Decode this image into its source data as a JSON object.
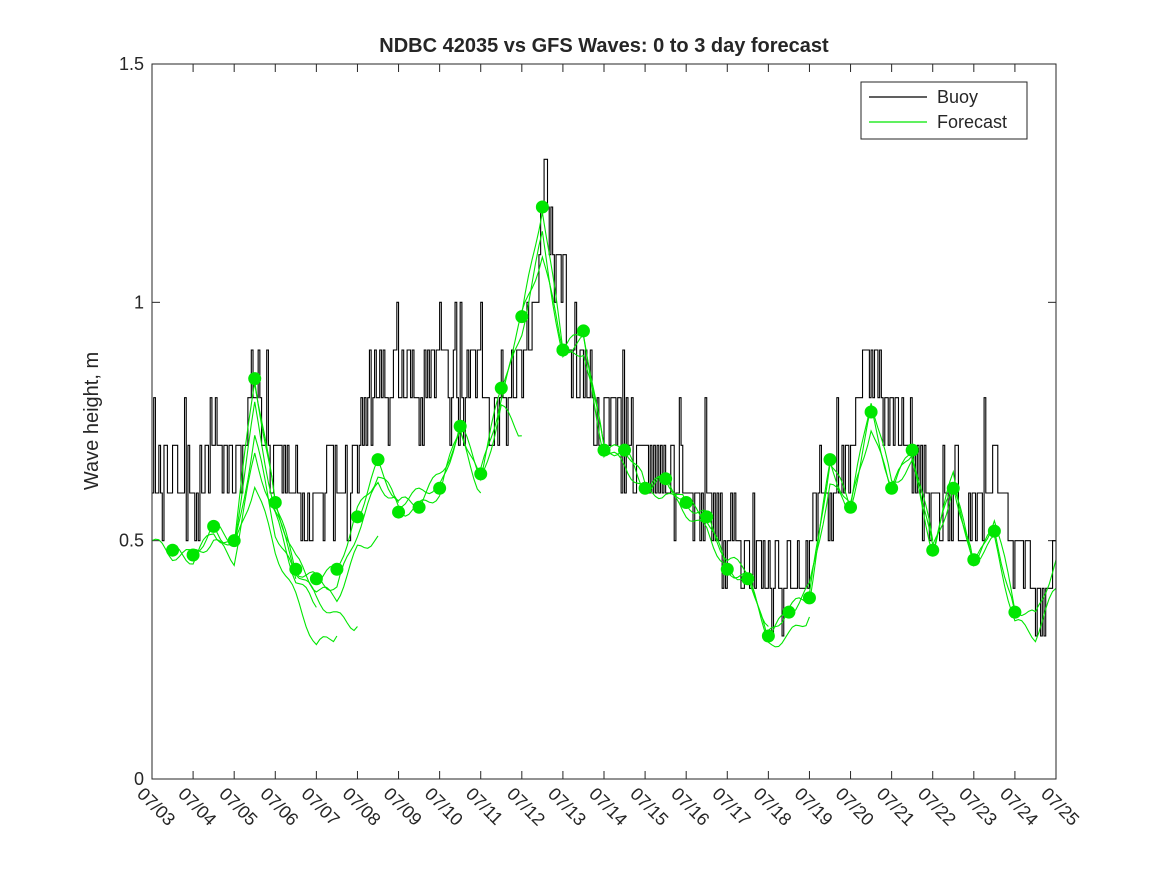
{
  "chart_data": {
    "type": "line",
    "title": "NDBC 42035 vs GFS Waves: 0 to 3 day forecast",
    "ylabel": "Wave height, m",
    "xlabel": "",
    "ylim": [
      0,
      1.5
    ],
    "xlim": [
      0,
      22
    ],
    "yticks": [
      {
        "value": 0,
        "label": "0"
      },
      {
        "value": 0.5,
        "label": "0.5"
      },
      {
        "value": 1,
        "label": "1"
      },
      {
        "value": 1.5,
        "label": "1.5"
      }
    ],
    "xticks": [
      "07/03",
      "07/04",
      "07/05",
      "07/06",
      "07/07",
      "07/08",
      "07/09",
      "07/10",
      "07/11",
      "07/12",
      "07/13",
      "07/14",
      "07/15",
      "07/16",
      "07/17",
      "07/18",
      "07/19",
      "07/20",
      "07/21",
      "07/22",
      "07/23",
      "07/24",
      "07/25"
    ],
    "legend": {
      "placement": "top-right",
      "entries": [
        {
          "label": "Buoy",
          "color": "#000000"
        },
        {
          "label": "Forecast",
          "color": "#00e600"
        }
      ]
    },
    "colors": {
      "buoy": "#000000",
      "forecast": "#00e600"
    },
    "buoy_daily_profile": [
      [
        0.0,
        0.62
      ],
      [
        0.25,
        0.6
      ],
      [
        0.5,
        0.65
      ],
      [
        0.75,
        0.6
      ],
      [
        1.0,
        0.58
      ],
      [
        1.25,
        0.65
      ],
      [
        1.5,
        0.75
      ],
      [
        1.75,
        0.68
      ],
      [
        2.0,
        0.62
      ],
      [
        2.25,
        0.72
      ],
      [
        2.5,
        0.86
      ],
      [
        2.75,
        0.74
      ],
      [
        3.0,
        0.68
      ],
      [
        3.25,
        0.63
      ],
      [
        3.5,
        0.6
      ],
      [
        3.75,
        0.58
      ],
      [
        4.0,
        0.6
      ],
      [
        4.25,
        0.64
      ],
      [
        4.5,
        0.62
      ],
      [
        4.75,
        0.6
      ],
      [
        5.0,
        0.68
      ],
      [
        5.25,
        0.78
      ],
      [
        5.5,
        0.85
      ],
      [
        5.75,
        0.8
      ],
      [
        6.0,
        0.82
      ],
      [
        6.25,
        0.88
      ],
      [
        6.5,
        0.78
      ],
      [
        6.75,
        0.84
      ],
      [
        7.0,
        0.9
      ],
      [
        7.25,
        0.82
      ],
      [
        7.5,
        0.78
      ],
      [
        7.75,
        0.88
      ],
      [
        8.0,
        0.84
      ],
      [
        8.25,
        0.78
      ],
      [
        8.5,
        0.72
      ],
      [
        8.75,
        0.8
      ],
      [
        9.0,
        0.88
      ],
      [
        9.25,
        0.98
      ],
      [
        9.5,
        1.25
      ],
      [
        9.75,
        1.1
      ],
      [
        10.0,
        0.98
      ],
      [
        10.25,
        0.9
      ],
      [
        10.5,
        0.82
      ],
      [
        10.75,
        0.76
      ],
      [
        11.0,
        0.72
      ],
      [
        11.25,
        0.74
      ],
      [
        11.5,
        0.7
      ],
      [
        11.75,
        0.68
      ],
      [
        12.0,
        0.66
      ],
      [
        12.25,
        0.64
      ],
      [
        12.5,
        0.62
      ],
      [
        12.75,
        0.6
      ],
      [
        13.0,
        0.6
      ],
      [
        13.25,
        0.58
      ],
      [
        13.5,
        0.56
      ],
      [
        13.75,
        0.52
      ],
      [
        14.0,
        0.48
      ],
      [
        14.25,
        0.45
      ],
      [
        14.5,
        0.45
      ],
      [
        14.75,
        0.4
      ],
      [
        15.0,
        0.42
      ],
      [
        15.25,
        0.4
      ],
      [
        15.5,
        0.44
      ],
      [
        15.75,
        0.42
      ],
      [
        16.0,
        0.48
      ],
      [
        16.25,
        0.55
      ],
      [
        16.5,
        0.62
      ],
      [
        16.75,
        0.6
      ],
      [
        17.0,
        0.7
      ],
      [
        17.25,
        0.84
      ],
      [
        17.5,
        0.88
      ],
      [
        17.75,
        0.82
      ],
      [
        18.0,
        0.78
      ],
      [
        18.25,
        0.72
      ],
      [
        18.5,
        0.68
      ],
      [
        18.75,
        0.62
      ],
      [
        19.0,
        0.56
      ],
      [
        19.25,
        0.58
      ],
      [
        19.5,
        0.6
      ],
      [
        19.75,
        0.58
      ],
      [
        20.0,
        0.55
      ],
      [
        20.25,
        0.58
      ],
      [
        20.5,
        0.62
      ],
      [
        20.75,
        0.55
      ],
      [
        21.0,
        0.48
      ],
      [
        21.25,
        0.45
      ],
      [
        21.5,
        0.42
      ],
      [
        21.75,
        0.4
      ],
      [
        22.0,
        0.45
      ]
    ],
    "forecast_analysis_points": [
      [
        0.5,
        0.48
      ],
      [
        1.0,
        0.47
      ],
      [
        1.5,
        0.53
      ],
      [
        2.0,
        0.5
      ],
      [
        2.5,
        0.84
      ],
      [
        3.0,
        0.58
      ],
      [
        3.5,
        0.44
      ],
      [
        4.0,
        0.42
      ],
      [
        4.5,
        0.44
      ],
      [
        5.0,
        0.55
      ],
      [
        5.5,
        0.67
      ],
      [
        6.0,
        0.56
      ],
      [
        6.5,
        0.57
      ],
      [
        7.0,
        0.61
      ],
      [
        7.5,
        0.74
      ],
      [
        8.0,
        0.64
      ],
      [
        8.5,
        0.82
      ],
      [
        9.0,
        0.97
      ],
      [
        9.5,
        1.2
      ],
      [
        10.0,
        0.9
      ],
      [
        10.5,
        0.94
      ],
      [
        11.0,
        0.69
      ],
      [
        11.5,
        0.69
      ],
      [
        12.0,
        0.61
      ],
      [
        12.5,
        0.63
      ],
      [
        13.0,
        0.58
      ],
      [
        13.5,
        0.55
      ],
      [
        14.0,
        0.44
      ],
      [
        14.5,
        0.42
      ],
      [
        15.0,
        0.3
      ],
      [
        15.5,
        0.35
      ],
      [
        16.0,
        0.38
      ],
      [
        16.5,
        0.67
      ],
      [
        17.0,
        0.57
      ],
      [
        17.5,
        0.77
      ],
      [
        18.0,
        0.61
      ],
      [
        18.5,
        0.69
      ],
      [
        19.0,
        0.48
      ],
      [
        19.5,
        0.61
      ],
      [
        20.0,
        0.46
      ],
      [
        20.5,
        0.52
      ],
      [
        21.0,
        0.35
      ]
    ],
    "forecast_runs": [
      {
        "start": 0.0,
        "end": 3.0,
        "points": [
          [
            0.0,
            0.5
          ],
          [
            0.5,
            0.47
          ],
          [
            1.0,
            0.47
          ],
          [
            1.5,
            0.53
          ],
          [
            2.0,
            0.5
          ],
          [
            2.5,
            0.84
          ],
          [
            3.0,
            0.58
          ]
        ]
      },
      {
        "start": 0.5,
        "end": 3.5,
        "points": [
          [
            0.5,
            0.48
          ],
          [
            1.0,
            0.46
          ],
          [
            1.5,
            0.52
          ],
          [
            2.0,
            0.48
          ],
          [
            2.5,
            0.72
          ],
          [
            3.0,
            0.52
          ],
          [
            3.5,
            0.42
          ]
        ]
      },
      {
        "start": 1.0,
        "end": 4.0,
        "points": [
          [
            1.0,
            0.47
          ],
          [
            1.5,
            0.5
          ],
          [
            2.0,
            0.46
          ],
          [
            2.5,
            0.68
          ],
          [
            3.0,
            0.55
          ],
          [
            3.5,
            0.42
          ],
          [
            4.0,
            0.36
          ]
        ]
      },
      {
        "start": 1.5,
        "end": 4.5,
        "points": [
          [
            1.5,
            0.53
          ],
          [
            2.0,
            0.48
          ],
          [
            2.5,
            0.62
          ],
          [
            3.0,
            0.48
          ],
          [
            3.5,
            0.38
          ],
          [
            4.0,
            0.28
          ],
          [
            4.5,
            0.3
          ]
        ]
      },
      {
        "start": 2.0,
        "end": 5.0,
        "points": [
          [
            2.0,
            0.5
          ],
          [
            2.5,
            0.78
          ],
          [
            3.0,
            0.56
          ],
          [
            3.5,
            0.44
          ],
          [
            4.0,
            0.38
          ],
          [
            4.5,
            0.34
          ],
          [
            5.0,
            0.32
          ]
        ]
      },
      {
        "start": 2.5,
        "end": 5.5,
        "points": [
          [
            2.5,
            0.84
          ],
          [
            3.0,
            0.58
          ],
          [
            3.5,
            0.46
          ],
          [
            4.0,
            0.4
          ],
          [
            4.5,
            0.38
          ],
          [
            5.0,
            0.48
          ],
          [
            5.5,
            0.51
          ]
        ]
      },
      {
        "start": 3.0,
        "end": 6.0,
        "points": [
          [
            3.0,
            0.58
          ],
          [
            3.5,
            0.44
          ],
          [
            4.0,
            0.42
          ],
          [
            4.5,
            0.4
          ],
          [
            5.0,
            0.52
          ],
          [
            5.5,
            0.62
          ],
          [
            6.0,
            0.58
          ]
        ]
      },
      {
        "start": 4.0,
        "end": 7.0,
        "points": [
          [
            4.0,
            0.42
          ],
          [
            4.5,
            0.44
          ],
          [
            5.0,
            0.56
          ],
          [
            5.5,
            0.64
          ],
          [
            6.0,
            0.58
          ],
          [
            6.5,
            0.6
          ],
          [
            7.0,
            0.62
          ]
        ]
      },
      {
        "start": 5.0,
        "end": 8.0,
        "points": [
          [
            5.0,
            0.55
          ],
          [
            5.5,
            0.66
          ],
          [
            6.0,
            0.58
          ],
          [
            6.5,
            0.58
          ],
          [
            7.0,
            0.64
          ],
          [
            7.5,
            0.72
          ],
          [
            8.0,
            0.6
          ]
        ]
      },
      {
        "start": 6.0,
        "end": 9.0,
        "points": [
          [
            6.0,
            0.56
          ],
          [
            6.5,
            0.57
          ],
          [
            7.0,
            0.6
          ],
          [
            7.5,
            0.74
          ],
          [
            8.0,
            0.62
          ],
          [
            8.5,
            0.78
          ],
          [
            9.0,
            0.72
          ]
        ]
      },
      {
        "start": 7.0,
        "end": 10.0,
        "points": [
          [
            7.0,
            0.61
          ],
          [
            7.5,
            0.74
          ],
          [
            8.0,
            0.64
          ],
          [
            8.5,
            0.82
          ],
          [
            9.0,
            0.97
          ],
          [
            9.5,
            1.1
          ],
          [
            10.0,
            0.9
          ]
        ]
      },
      {
        "start": 8.0,
        "end": 11.0,
        "points": [
          [
            8.0,
            0.64
          ],
          [
            8.5,
            0.8
          ],
          [
            9.0,
            0.94
          ],
          [
            9.5,
            1.14
          ],
          [
            10.0,
            0.88
          ],
          [
            10.5,
            0.9
          ],
          [
            11.0,
            0.7
          ]
        ]
      },
      {
        "start": 9.0,
        "end": 12.0,
        "points": [
          [
            9.0,
            0.97
          ],
          [
            9.5,
            1.2
          ],
          [
            10.0,
            0.9
          ],
          [
            10.5,
            0.92
          ],
          [
            11.0,
            0.68
          ],
          [
            11.5,
            0.7
          ],
          [
            12.0,
            0.62
          ]
        ]
      },
      {
        "start": 10.0,
        "end": 13.0,
        "points": [
          [
            10.0,
            0.9
          ],
          [
            10.5,
            0.94
          ],
          [
            11.0,
            0.69
          ],
          [
            11.5,
            0.69
          ],
          [
            12.0,
            0.61
          ],
          [
            12.5,
            0.63
          ],
          [
            13.0,
            0.58
          ]
        ]
      },
      {
        "start": 11.0,
        "end": 14.0,
        "points": [
          [
            11.0,
            0.69
          ],
          [
            11.5,
            0.66
          ],
          [
            12.0,
            0.6
          ],
          [
            12.5,
            0.6
          ],
          [
            13.0,
            0.56
          ],
          [
            13.5,
            0.52
          ],
          [
            14.0,
            0.44
          ]
        ]
      },
      {
        "start": 12.0,
        "end": 15.0,
        "points": [
          [
            12.0,
            0.61
          ],
          [
            12.5,
            0.63
          ],
          [
            13.0,
            0.58
          ],
          [
            13.5,
            0.55
          ],
          [
            14.0,
            0.44
          ],
          [
            14.5,
            0.42
          ],
          [
            15.0,
            0.32
          ]
        ]
      },
      {
        "start": 13.0,
        "end": 16.0,
        "points": [
          [
            13.0,
            0.58
          ],
          [
            13.5,
            0.55
          ],
          [
            14.0,
            0.46
          ],
          [
            14.5,
            0.44
          ],
          [
            15.0,
            0.28
          ],
          [
            15.5,
            0.3
          ],
          [
            16.0,
            0.34
          ]
        ]
      },
      {
        "start": 14.0,
        "end": 17.0,
        "points": [
          [
            14.0,
            0.44
          ],
          [
            14.5,
            0.42
          ],
          [
            15.0,
            0.3
          ],
          [
            15.5,
            0.35
          ],
          [
            16.0,
            0.4
          ],
          [
            16.5,
            0.62
          ],
          [
            17.0,
            0.56
          ]
        ]
      },
      {
        "start": 15.0,
        "end": 18.0,
        "points": [
          [
            15.0,
            0.3
          ],
          [
            15.5,
            0.36
          ],
          [
            16.0,
            0.38
          ],
          [
            16.5,
            0.66
          ],
          [
            17.0,
            0.57
          ],
          [
            17.5,
            0.74
          ],
          [
            18.0,
            0.6
          ]
        ]
      },
      {
        "start": 16.0,
        "end": 19.0,
        "points": [
          [
            16.0,
            0.38
          ],
          [
            16.5,
            0.67
          ],
          [
            17.0,
            0.57
          ],
          [
            17.5,
            0.77
          ],
          [
            18.0,
            0.61
          ],
          [
            18.5,
            0.69
          ],
          [
            19.0,
            0.5
          ]
        ]
      },
      {
        "start": 17.0,
        "end": 20.0,
        "points": [
          [
            17.0,
            0.57
          ],
          [
            17.5,
            0.8
          ],
          [
            18.0,
            0.62
          ],
          [
            18.5,
            0.66
          ],
          [
            19.0,
            0.48
          ],
          [
            19.5,
            0.62
          ],
          [
            20.0,
            0.45
          ]
        ]
      },
      {
        "start": 18.0,
        "end": 21.0,
        "points": [
          [
            18.0,
            0.61
          ],
          [
            18.5,
            0.69
          ],
          [
            19.0,
            0.48
          ],
          [
            19.5,
            0.61
          ],
          [
            20.0,
            0.46
          ],
          [
            20.5,
            0.52
          ],
          [
            21.0,
            0.35
          ]
        ]
      },
      {
        "start": 19.0,
        "end": 22.0,
        "points": [
          [
            19.0,
            0.48
          ],
          [
            19.5,
            0.64
          ],
          [
            20.0,
            0.44
          ],
          [
            20.5,
            0.55
          ],
          [
            21.0,
            0.36
          ],
          [
            21.5,
            0.34
          ],
          [
            22.0,
            0.46
          ]
        ]
      },
      {
        "start": 20.0,
        "end": 22.0,
        "points": [
          [
            20.0,
            0.46
          ],
          [
            20.5,
            0.5
          ],
          [
            21.0,
            0.33
          ],
          [
            21.5,
            0.3
          ],
          [
            22.0,
            0.4
          ]
        ]
      }
    ]
  }
}
